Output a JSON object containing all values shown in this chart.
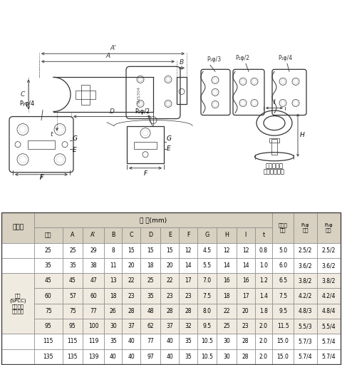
{
  "bg_color": "#ffffff",
  "table_header_bg": "#d8d0c0",
  "table_data_bg": "#f0ebe0",
  "col_subheaders": [
    "呼称",
    "A",
    "A'",
    "B",
    "C",
    "D",
    "E",
    "F",
    "G",
    "H",
    "I",
    "t",
    "丸かん\n内径",
    "P₁φ\n穴数",
    "P₂φ\n穴数"
  ],
  "row_label": "鉄製\n(SPCC)\nグリーン\n焼付塗装",
  "rows": [
    [
      "25",
      "25",
      "29",
      "8",
      "15",
      "15",
      "15",
      "12",
      "4.5",
      "12",
      "12",
      "0.8",
      "5.0",
      "2.5/2",
      "2.5/2"
    ],
    [
      "35",
      "35",
      "38",
      "11",
      "20",
      "18",
      "20",
      "14",
      "5.5",
      "14",
      "14",
      "1.0",
      "6.0",
      "3.6/2",
      "3.6/2"
    ],
    [
      "45",
      "45",
      "47",
      "13",
      "22",
      "25",
      "22",
      "17",
      "7.0",
      "16",
      "16",
      "1.2",
      "6.5",
      "3.8/2",
      "3.8/2"
    ],
    [
      "60",
      "57",
      "60",
      "18",
      "23",
      "35",
      "23",
      "23",
      "7.5",
      "18",
      "17",
      "1.4",
      "7.5",
      "4.2/2",
      "4.2/4"
    ],
    [
      "75",
      "75",
      "77",
      "26",
      "28",
      "48",
      "28",
      "28",
      "8.0",
      "22",
      "20",
      "1.8",
      "9.5",
      "4.8/3",
      "4.8/4"
    ],
    [
      "95",
      "95",
      "100",
      "30",
      "37",
      "62",
      "37",
      "32",
      "9.5",
      "25",
      "23",
      "2.0",
      "11.5",
      "5.5/3",
      "5.5/4"
    ],
    [
      "115",
      "115",
      "119",
      "35",
      "40",
      "77",
      "40",
      "35",
      "10.5",
      "30",
      "28",
      "2.0",
      "15.0",
      "5.7/3",
      "5.7/4"
    ],
    [
      "135",
      "135",
      "139",
      "40",
      "40",
      "97",
      "40",
      "35",
      "10.5",
      "30",
      "28",
      "2.0",
      "15.0",
      "5.7/4",
      "5.7/4"
    ]
  ]
}
